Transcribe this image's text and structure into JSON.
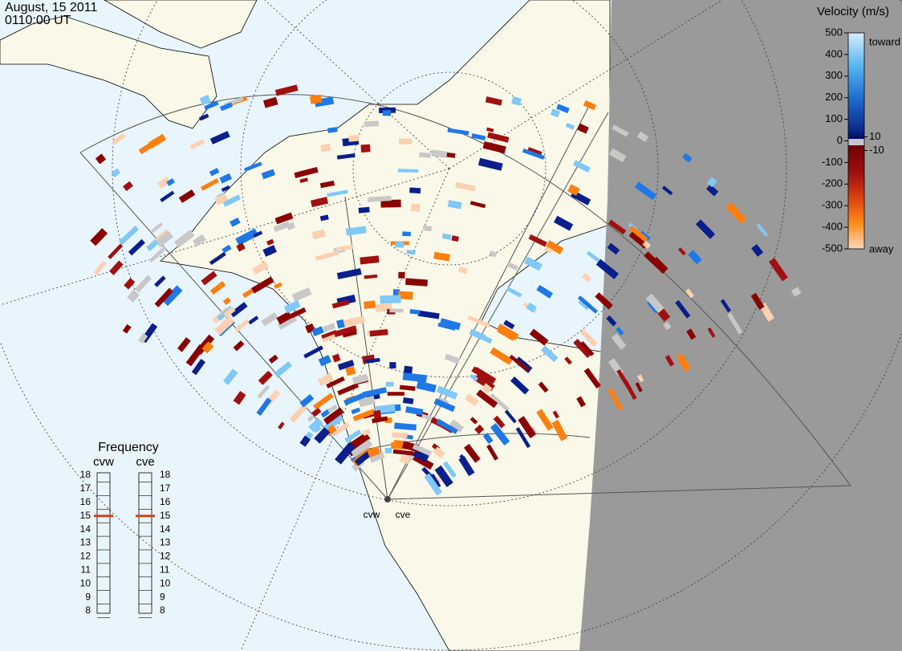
{
  "header": {
    "date": "August, 15 2011",
    "time": "0110:00 UT"
  },
  "velocity_legend": {
    "title": "Velocity (m/s)",
    "ticks": [
      500,
      400,
      300,
      200,
      100,
      0,
      -100,
      -200,
      -300,
      -400,
      -500
    ],
    "inner_ticks": [
      10,
      -10
    ],
    "toward": "toward",
    "away": "away"
  },
  "frequency": {
    "title": "Frequency",
    "ticks": [
      8,
      9,
      10,
      11,
      12,
      13,
      14,
      15,
      16,
      17,
      18
    ],
    "radars": [
      {
        "name": "cvw",
        "value": 15
      },
      {
        "name": "cve",
        "value": 15
      }
    ]
  },
  "radar_labels": [
    "cvw",
    "cve"
  ]
}
